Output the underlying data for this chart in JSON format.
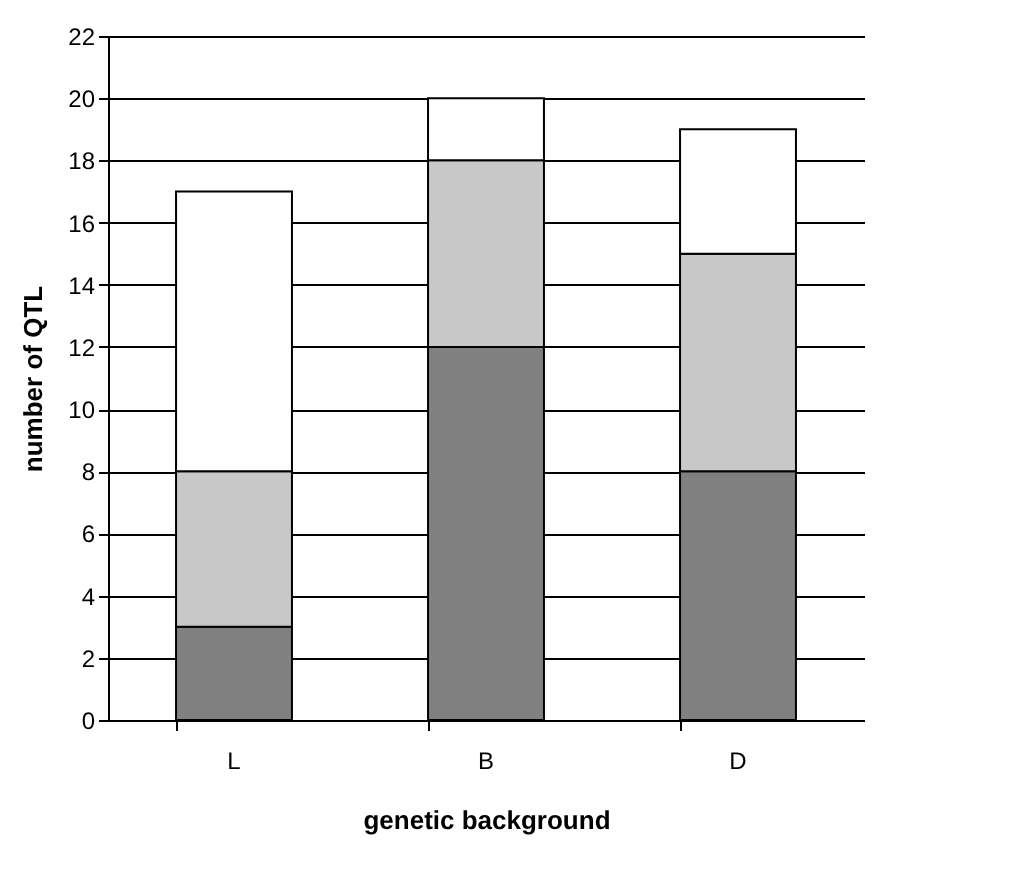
{
  "chart_data": {
    "type": "bar",
    "stacked": true,
    "xlabel": "genetic background",
    "ylabel": "number of QTL",
    "categories": [
      "L",
      "B",
      "D"
    ],
    "series": [
      {
        "color": "#808080",
        "values": [
          3,
          12,
          8
        ]
      },
      {
        "color": "#c8c8c8",
        "values": [
          5,
          6,
          7
        ]
      },
      {
        "color": "#ffffff",
        "values": [
          9,
          2,
          4
        ]
      }
    ],
    "ylim": [
      0,
      22
    ],
    "yticks": [
      0,
      2,
      4,
      6,
      8,
      10,
      12,
      14,
      16,
      18,
      20,
      22
    ],
    "grid": "y",
    "legend": false
  }
}
